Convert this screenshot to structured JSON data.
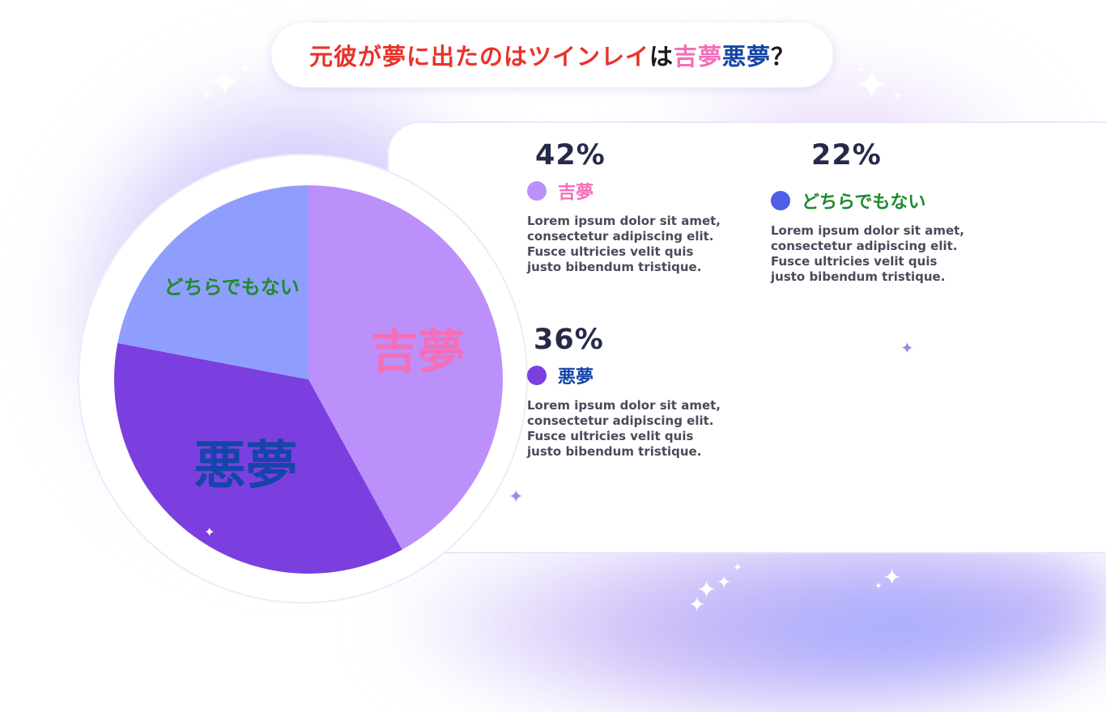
{
  "title": {
    "part1": "元彼が夢に出たのはツインレイ",
    "part2": "は",
    "part3": "吉夢",
    "part4": "悪夢",
    "part5": "？"
  },
  "colors": {
    "title_red": "#e8332a",
    "title_black": "#1a1a1a",
    "good_pink": "#f46fb9",
    "bad_blue": "#1545a8",
    "neither_green": "#1f8a2e",
    "slice_good": "#bb90fb",
    "slice_bad": "#7b3fdf",
    "slice_neither": "#8f9efc",
    "dot_neither": "#4f5de8"
  },
  "chart_data": {
    "type": "pie",
    "categories": [
      "吉夢",
      "悪夢",
      "どちらでもない"
    ],
    "values": [
      42,
      36,
      22
    ],
    "unit": "%",
    "slice_labels": [
      "吉夢",
      "悪夢",
      "どちらでもない"
    ]
  },
  "legend": [
    {
      "percent": "42%",
      "label": "吉夢",
      "description": "Lorem ipsum dolor sit amet, consectetur adipiscing elit. Fusce ultricies velit quis justo bibendum tristique."
    },
    {
      "percent": "22%",
      "label": "どちらでもない",
      "description": "Lorem ipsum dolor sit amet, consectetur adipiscing elit. Fusce ultricies velit quis justo bibendum tristique."
    },
    {
      "percent": "36%",
      "label": "悪夢",
      "description": "Lorem ipsum dolor sit amet, consectetur adipiscing elit. Fusce ultricies velit quis justo bibendum tristique."
    }
  ],
  "icons": {
    "sparkle": "sparkle-icon"
  }
}
